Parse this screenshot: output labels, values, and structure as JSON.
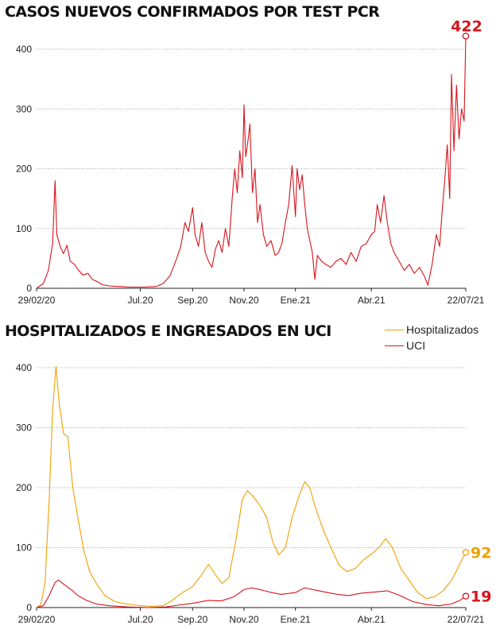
{
  "chart_data": [
    {
      "type": "line",
      "title": "CASOS NUEVOS CONFIRMADOS POR TEST PCR",
      "xlabel": "",
      "ylabel": "",
      "ylim": [
        0,
        400
      ],
      "yticks": [
        "0",
        "100",
        "200",
        "300",
        "400"
      ],
      "xticks": [
        {
          "label": "29/02/20",
          "date": "2020-02-29"
        },
        {
          "label": "Jul.20",
          "date": "2020-07-01"
        },
        {
          "label": "Sep.20",
          "date": "2020-09-01"
        },
        {
          "label": "Nov.20",
          "date": "2020-11-01"
        },
        {
          "label": "Ene.21",
          "date": "2021-01-01"
        },
        {
          "label": "Abr.21",
          "date": "2021-04-01"
        },
        {
          "label": "22/07/21",
          "date": "2021-07-22"
        }
      ],
      "grid": true,
      "series": [
        {
          "name": "",
          "color": "#d6141c",
          "points": [
            [
              "2020-02-29",
              0
            ],
            [
              "2020-03-08",
              8
            ],
            [
              "2020-03-14",
              30
            ],
            [
              "2020-03-19",
              75
            ],
            [
              "2020-03-22",
              180
            ],
            [
              "2020-03-24",
              90
            ],
            [
              "2020-03-28",
              70
            ],
            [
              "2020-04-01",
              58
            ],
            [
              "2020-04-05",
              72
            ],
            [
              "2020-04-09",
              45
            ],
            [
              "2020-04-14",
              40
            ],
            [
              "2020-04-19",
              30
            ],
            [
              "2020-04-24",
              22
            ],
            [
              "2020-04-30",
              25
            ],
            [
              "2020-05-05",
              15
            ],
            [
              "2020-05-10",
              12
            ],
            [
              "2020-05-17",
              6
            ],
            [
              "2020-05-25",
              4
            ],
            [
              "2020-06-05",
              3
            ],
            [
              "2020-06-20",
              2
            ],
            [
              "2020-07-05",
              2
            ],
            [
              "2020-07-20",
              3
            ],
            [
              "2020-07-28",
              8
            ],
            [
              "2020-08-05",
              20
            ],
            [
              "2020-08-12",
              45
            ],
            [
              "2020-08-18",
              70
            ],
            [
              "2020-08-23",
              110
            ],
            [
              "2020-08-27",
              95
            ],
            [
              "2020-09-01",
              135
            ],
            [
              "2020-09-04",
              90
            ],
            [
              "2020-09-08",
              70
            ],
            [
              "2020-09-12",
              110
            ],
            [
              "2020-09-16",
              60
            ],
            [
              "2020-09-20",
              45
            ],
            [
              "2020-09-24",
              35
            ],
            [
              "2020-09-28",
              65
            ],
            [
              "2020-10-02",
              80
            ],
            [
              "2020-10-06",
              60
            ],
            [
              "2020-10-10",
              100
            ],
            [
              "2020-10-14",
              70
            ],
            [
              "2020-10-18",
              150
            ],
            [
              "2020-10-21",
              200
            ],
            [
              "2020-10-24",
              160
            ],
            [
              "2020-10-27",
              230
            ],
            [
              "2020-10-30",
              185
            ],
            [
              "2020-11-01",
              307
            ],
            [
              "2020-11-03",
              220
            ],
            [
              "2020-11-06",
              250
            ],
            [
              "2020-11-08",
              275
            ],
            [
              "2020-11-11",
              160
            ],
            [
              "2020-11-14",
              200
            ],
            [
              "2020-11-17",
              110
            ],
            [
              "2020-11-20",
              140
            ],
            [
              "2020-11-24",
              90
            ],
            [
              "2020-11-28",
              70
            ],
            [
              "2020-12-03",
              80
            ],
            [
              "2020-12-08",
              55
            ],
            [
              "2020-12-12",
              60
            ],
            [
              "2020-12-16",
              75
            ],
            [
              "2020-12-20",
              110
            ],
            [
              "2020-12-24",
              140
            ],
            [
              "2020-12-28",
              205
            ],
            [
              "2021-01-01",
              120
            ],
            [
              "2021-01-03",
              200
            ],
            [
              "2021-01-06",
              165
            ],
            [
              "2021-01-09",
              190
            ],
            [
              "2021-01-12",
              140
            ],
            [
              "2021-01-15",
              100
            ],
            [
              "2021-01-18",
              80
            ],
            [
              "2021-01-21",
              60
            ],
            [
              "2021-01-24",
              15
            ],
            [
              "2021-01-27",
              55
            ],
            [
              "2021-02-01",
              45
            ],
            [
              "2021-02-06",
              40
            ],
            [
              "2021-02-12",
              35
            ],
            [
              "2021-02-18",
              45
            ],
            [
              "2021-02-24",
              50
            ],
            [
              "2021-03-02",
              40
            ],
            [
              "2021-03-08",
              60
            ],
            [
              "2021-03-14",
              45
            ],
            [
              "2021-03-20",
              70
            ],
            [
              "2021-03-26",
              75
            ],
            [
              "2021-04-01",
              90
            ],
            [
              "2021-04-05",
              95
            ],
            [
              "2021-04-08",
              140
            ],
            [
              "2021-04-12",
              110
            ],
            [
              "2021-04-16",
              155
            ],
            [
              "2021-04-20",
              110
            ],
            [
              "2021-04-24",
              75
            ],
            [
              "2021-04-28",
              60
            ],
            [
              "2021-05-04",
              45
            ],
            [
              "2021-05-10",
              30
            ],
            [
              "2021-05-16",
              40
            ],
            [
              "2021-05-22",
              25
            ],
            [
              "2021-05-28",
              35
            ],
            [
              "2021-06-03",
              20
            ],
            [
              "2021-06-07",
              5
            ],
            [
              "2021-06-12",
              40
            ],
            [
              "2021-06-17",
              90
            ],
            [
              "2021-06-21",
              70
            ],
            [
              "2021-06-24",
              130
            ],
            [
              "2021-06-27",
              180
            ],
            [
              "2021-06-30",
              240
            ],
            [
              "2021-07-03",
              150
            ],
            [
              "2021-07-05",
              358
            ],
            [
              "2021-07-08",
              230
            ],
            [
              "2021-07-11",
              340
            ],
            [
              "2021-07-14",
              250
            ],
            [
              "2021-07-17",
              300
            ],
            [
              "2021-07-20",
              280
            ],
            [
              "2021-07-22",
              422
            ]
          ]
        }
      ],
      "annotations": [
        {
          "label": "422",
          "date": "2021-07-22",
          "value": 422,
          "color": "#d6141c"
        }
      ]
    },
    {
      "type": "line",
      "title": "HOSPITALIZADOS E INGRESADOS EN UCI",
      "xlabel": "",
      "ylabel": "",
      "ylim": [
        0,
        400
      ],
      "yticks": [
        "0",
        "100",
        "200",
        "300",
        "400"
      ],
      "xticks": [
        {
          "label": "29/02/20",
          "date": "2020-02-29"
        },
        {
          "label": "Jul.20",
          "date": "2020-07-01"
        },
        {
          "label": "Sep.20",
          "date": "2020-09-01"
        },
        {
          "label": "Nov.20",
          "date": "2020-11-01"
        },
        {
          "label": "Ene.21",
          "date": "2021-01-01"
        },
        {
          "label": "Abr.21",
          "date": "2021-04-01"
        },
        {
          "label": "22/07/21",
          "date": "2021-07-22"
        }
      ],
      "grid": true,
      "legend": "top-right",
      "series": [
        {
          "name": "Hospitalizados",
          "color": "#f0a000",
          "points": [
            [
              "2020-02-29",
              0
            ],
            [
              "2020-03-05",
              5
            ],
            [
              "2020-03-10",
              40
            ],
            [
              "2020-03-15",
              180
            ],
            [
              "2020-03-19",
              330
            ],
            [
              "2020-03-23",
              402
            ],
            [
              "2020-03-27",
              340
            ],
            [
              "2020-04-01",
              290
            ],
            [
              "2020-04-06",
              285
            ],
            [
              "2020-04-12",
              200
            ],
            [
              "2020-04-18",
              150
            ],
            [
              "2020-04-25",
              95
            ],
            [
              "2020-05-02",
              60
            ],
            [
              "2020-05-10",
              40
            ],
            [
              "2020-05-20",
              20
            ],
            [
              "2020-06-01",
              10
            ],
            [
              "2020-06-15",
              6
            ],
            [
              "2020-07-01",
              3
            ],
            [
              "2020-07-15",
              2
            ],
            [
              "2020-07-28",
              3
            ],
            [
              "2020-08-08",
              12
            ],
            [
              "2020-08-20",
              25
            ],
            [
              "2020-09-01",
              35
            ],
            [
              "2020-09-12",
              55
            ],
            [
              "2020-09-20",
              72
            ],
            [
              "2020-09-28",
              55
            ],
            [
              "2020-10-06",
              40
            ],
            [
              "2020-10-14",
              50
            ],
            [
              "2020-10-22",
              110
            ],
            [
              "2020-10-30",
              180
            ],
            [
              "2020-11-05",
              195
            ],
            [
              "2020-11-12",
              185
            ],
            [
              "2020-11-20",
              170
            ],
            [
              "2020-11-28",
              150
            ],
            [
              "2020-12-05",
              110
            ],
            [
              "2020-12-12",
              88
            ],
            [
              "2020-12-20",
              100
            ],
            [
              "2020-12-28",
              150
            ],
            [
              "2021-01-05",
              185
            ],
            [
              "2021-01-12",
              210
            ],
            [
              "2021-01-18",
              200
            ],
            [
              "2021-01-25",
              165
            ],
            [
              "2021-02-03",
              130
            ],
            [
              "2021-02-12",
              100
            ],
            [
              "2021-02-22",
              70
            ],
            [
              "2021-03-03",
              60
            ],
            [
              "2021-03-13",
              65
            ],
            [
              "2021-03-23",
              80
            ],
            [
              "2021-04-02",
              90
            ],
            [
              "2021-04-10",
              100
            ],
            [
              "2021-04-18",
              115
            ],
            [
              "2021-04-26",
              100
            ],
            [
              "2021-05-06",
              65
            ],
            [
              "2021-05-16",
              45
            ],
            [
              "2021-05-26",
              25
            ],
            [
              "2021-06-05",
              15
            ],
            [
              "2021-06-15",
              18
            ],
            [
              "2021-06-25",
              28
            ],
            [
              "2021-07-05",
              45
            ],
            [
              "2021-07-14",
              70
            ],
            [
              "2021-07-22",
              92
            ]
          ]
        },
        {
          "name": "UCI",
          "color": "#d6141c",
          "points": [
            [
              "2020-02-29",
              0
            ],
            [
              "2020-03-08",
              3
            ],
            [
              "2020-03-15",
              20
            ],
            [
              "2020-03-22",
              42
            ],
            [
              "2020-03-26",
              46
            ],
            [
              "2020-04-02",
              38
            ],
            [
              "2020-04-10",
              30
            ],
            [
              "2020-04-18",
              20
            ],
            [
              "2020-04-28",
              12
            ],
            [
              "2020-05-10",
              6
            ],
            [
              "2020-05-25",
              3
            ],
            [
              "2020-06-15",
              1
            ],
            [
              "2020-07-10",
              0
            ],
            [
              "2020-08-01",
              1
            ],
            [
              "2020-08-15",
              4
            ],
            [
              "2020-09-01",
              7
            ],
            [
              "2020-09-20",
              12
            ],
            [
              "2020-10-05",
              11
            ],
            [
              "2020-10-20",
              18
            ],
            [
              "2020-11-01",
              30
            ],
            [
              "2020-11-10",
              33
            ],
            [
              "2020-11-20",
              30
            ],
            [
              "2020-12-01",
              26
            ],
            [
              "2020-12-15",
              22
            ],
            [
              "2021-01-01",
              25
            ],
            [
              "2021-01-12",
              33
            ],
            [
              "2021-01-22",
              30
            ],
            [
              "2021-02-05",
              26
            ],
            [
              "2021-02-20",
              22
            ],
            [
              "2021-03-05",
              20
            ],
            [
              "2021-03-20",
              24
            ],
            [
              "2021-04-05",
              26
            ],
            [
              "2021-04-20",
              28
            ],
            [
              "2021-05-05",
              20
            ],
            [
              "2021-05-20",
              10
            ],
            [
              "2021-06-05",
              5
            ],
            [
              "2021-06-20",
              3
            ],
            [
              "2021-07-05",
              6
            ],
            [
              "2021-07-15",
              12
            ],
            [
              "2021-07-22",
              19
            ]
          ]
        }
      ],
      "annotations": [
        {
          "label": "92",
          "date": "2021-07-22",
          "value": 92,
          "color": "#f0a000"
        },
        {
          "label": "19",
          "date": "2021-07-22",
          "value": 19,
          "color": "#d6141c"
        }
      ]
    }
  ]
}
